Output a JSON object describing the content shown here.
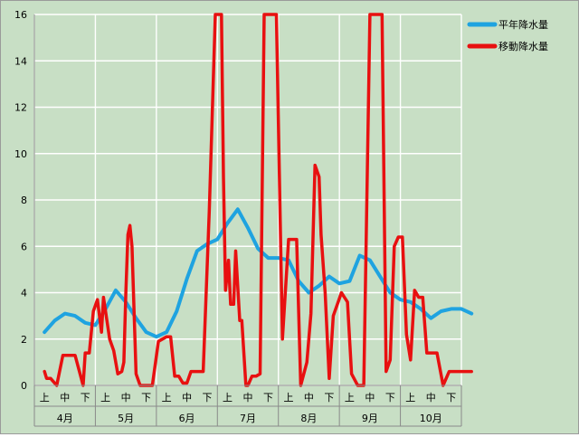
{
  "chart_data": {
    "type": "line",
    "ylim": [
      0,
      16
    ],
    "y_ticks": [
      0,
      2,
      4,
      6,
      8,
      10,
      12,
      14,
      16
    ],
    "grid": true,
    "legend_position": "top-right",
    "period_labels": [
      "上",
      "中",
      "下"
    ],
    "months": [
      "4月",
      "5月",
      "6月",
      "7月",
      "8月",
      "9月",
      "10月"
    ],
    "x_positions": "semi-monthly-thirds index 0-21 (each month = 3 periods)",
    "series": [
      {
        "name": "平年降水量",
        "color": "#1fa3e0",
        "x": [
          0,
          0.5,
          1,
          1.5,
          2,
          2.5,
          3,
          3.5,
          4,
          4.5,
          5,
          5.5,
          6,
          6.5,
          7,
          7.5,
          8,
          8.5,
          9,
          9.5,
          10,
          10.5,
          11,
          11.5,
          12,
          12.5,
          13,
          13.5,
          14,
          14.5,
          15,
          15.5,
          16,
          16.5,
          17,
          17.5,
          18,
          18.5,
          19,
          19.5,
          20,
          20.5,
          21
        ],
        "values": [
          2.3,
          2.8,
          3.1,
          3.0,
          2.7,
          2.6,
          3.3,
          4.1,
          3.6,
          2.9,
          2.3,
          2.1,
          2.3,
          3.2,
          4.6,
          5.8,
          6.1,
          6.3,
          7.0,
          7.6,
          6.8,
          5.9,
          5.5,
          5.5,
          5.4,
          4.5,
          4.0,
          4.3,
          4.7,
          4.4,
          4.5,
          5.6,
          5.4,
          4.7,
          4.0,
          3.7,
          3.6,
          3.3,
          2.9,
          3.2,
          3.3,
          3.3,
          3.1
        ]
      },
      {
        "name": "移動降水量",
        "color": "#e81010",
        "x": [
          0,
          0.1,
          0.3,
          0.6,
          0.9,
          1.2,
          1.5,
          1.9,
          2.0,
          2.2,
          2.4,
          2.6,
          2.8,
          2.9,
          3.2,
          3.4,
          3.6,
          3.8,
          3.9,
          4.0,
          4.1,
          4.2,
          4.3,
          4.5,
          4.7,
          5.0,
          5.3,
          5.6,
          6.0,
          6.2,
          6.4,
          6.6,
          6.8,
          7.0,
          7.2,
          7.5,
          7.8,
          8.1,
          8.4,
          8.7,
          8.8,
          8.9,
          9.05,
          9.15,
          9.3,
          9.4,
          9.6,
          9.7,
          9.9,
          10.0,
          10.2,
          10.4,
          10.6,
          10.8,
          11.0,
          11.2,
          11.4,
          11.7,
          12.0,
          12.2,
          12.4,
          12.6,
          12.9,
          13.1,
          13.3,
          13.5,
          13.6,
          13.8,
          14.0,
          14.2,
          14.4,
          14.6,
          14.9,
          15.1,
          15.4,
          15.7,
          16.0,
          16.2,
          16.4,
          16.6,
          16.8,
          17.0,
          17.2,
          17.4,
          17.6,
          17.8,
          18.0,
          18.2,
          18.4,
          18.6,
          18.8,
          19.0,
          19.3,
          19.6,
          19.9,
          20.2,
          20.5,
          20.7,
          20.9,
          21.0
        ],
        "values": [
          0.6,
          0.3,
          0.3,
          0.0,
          1.3,
          1.3,
          1.3,
          0.0,
          1.4,
          1.4,
          3.2,
          3.7,
          2.3,
          3.8,
          2.0,
          1.5,
          0.5,
          0.6,
          1.0,
          4.0,
          6.5,
          6.9,
          6.0,
          0.5,
          0.0,
          0.0,
          0.0,
          1.9,
          2.1,
          2.1,
          0.4,
          0.4,
          0.1,
          0.1,
          0.6,
          0.6,
          0.6,
          7.5,
          16.0,
          16.0,
          9.0,
          4.1,
          5.4,
          3.5,
          3.5,
          5.8,
          2.8,
          2.8,
          0.0,
          0.0,
          0.4,
          0.4,
          0.5,
          16.0,
          16.0,
          16.0,
          16.0,
          2.0,
          6.3,
          6.3,
          6.3,
          0.0,
          1.0,
          3.1,
          9.5,
          9.0,
          6.5,
          4.0,
          0.3,
          3.0,
          3.5,
          4.0,
          3.6,
          0.5,
          0.0,
          0.0,
          16.0,
          16.0,
          16.0,
          16.0,
          0.6,
          1.1,
          6.0,
          6.4,
          6.4,
          2.2,
          1.1,
          4.1,
          3.8,
          3.8,
          1.4,
          1.4,
          1.4,
          0.0,
          0.6,
          0.6,
          0.6,
          0.6,
          0.6,
          0.6
        ]
      }
    ]
  }
}
